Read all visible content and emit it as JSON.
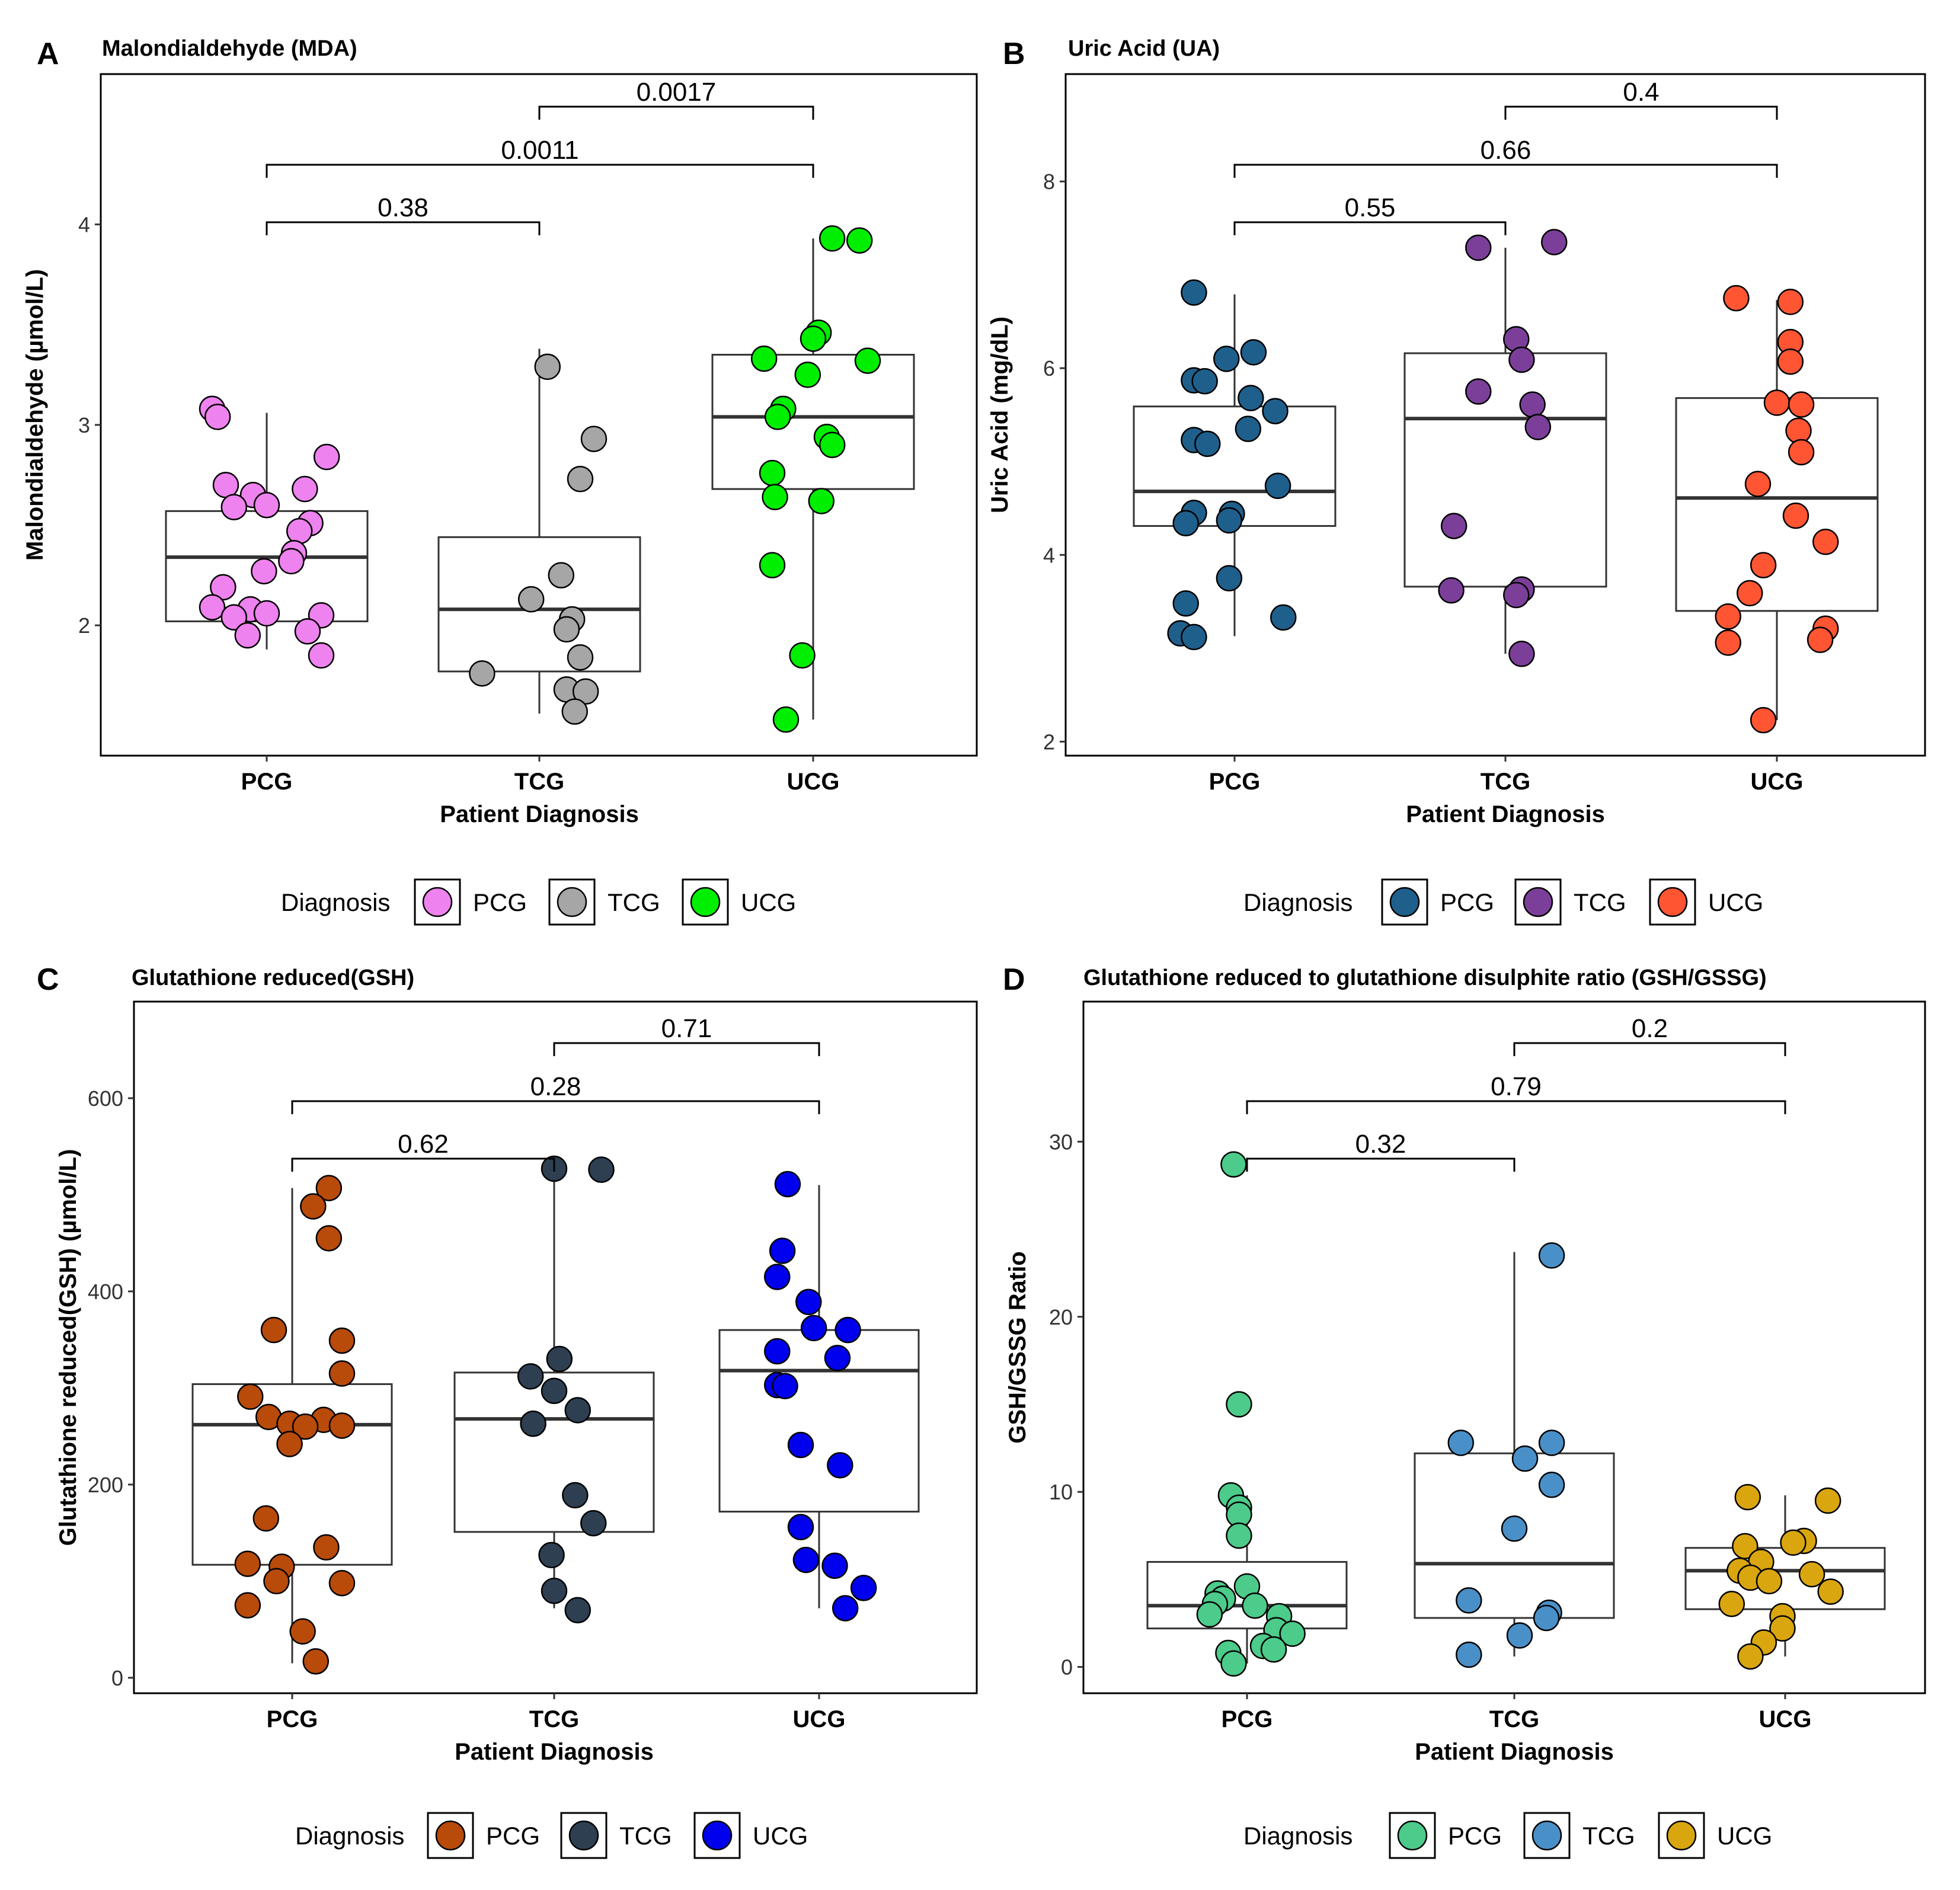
{
  "figure": {
    "panels": [
      {
        "letter": "A",
        "title": "Malondialdehyde (MDA)"
      },
      {
        "letter": "B",
        "title": "Uric Acid (UA)"
      },
      {
        "letter": "C",
        "title": "Glutathione reduced(GSH)"
      },
      {
        "letter": "D",
        "title": "Glutathione reduced to glutathione disulphite ratio (GSH/GSSG)"
      }
    ]
  },
  "chart_data": [
    {
      "type": "box",
      "panel": "A",
      "title": "Malondialdehyde (MDA)",
      "xlabel": "Patient Diagnosis",
      "ylabel": "Malondialdehyde (µmol/L)",
      "ylim": [
        1.35,
        4.75
      ],
      "yticks": [
        "2",
        "3",
        "4"
      ],
      "ytick_values": [
        2,
        3,
        4
      ],
      "categories": [
        "PCG",
        "TCG",
        "UCG"
      ],
      "colors": [
        "#EE82EE",
        "#A6A6A6",
        "#00EE00"
      ],
      "boxes": [
        {
          "group": "PCG",
          "min": 1.88,
          "q1": 2.02,
          "median": 2.34,
          "q3": 2.57,
          "max": 3.06
        },
        {
          "group": "TCG",
          "min": 1.56,
          "q1": 1.77,
          "median": 2.08,
          "q3": 2.44,
          "max": 3.38
        },
        {
          "group": "UCG",
          "min": 1.53,
          "q1": 2.68,
          "median": 3.04,
          "q3": 3.35,
          "max": 3.93
        }
      ],
      "points": [
        {
          "group": "PCG",
          "y": [
            3.08,
            3.04,
            2.84,
            2.7,
            2.68,
            2.65,
            2.6,
            2.59,
            2.51,
            2.47,
            2.36,
            2.32,
            2.27,
            2.19,
            2.09,
            2.08,
            2.06,
            2.05,
            2.04,
            1.97,
            1.95,
            1.85
          ],
          "jitter": [
            -0.2,
            -0.18,
            0.22,
            -0.15,
            0.14,
            -0.05,
            0.0,
            -0.12,
            0.16,
            0.12,
            0.1,
            0.09,
            -0.01,
            -0.16,
            -0.2,
            -0.06,
            0.0,
            0.2,
            -0.12,
            0.15,
            -0.07,
            0.2
          ]
        },
        {
          "group": "TCG",
          "y": [
            3.29,
            2.93,
            2.73,
            2.25,
            2.13,
            2.03,
            1.98,
            1.84,
            1.76,
            1.68,
            1.67,
            1.57
          ],
          "jitter": [
            0.03,
            0.2,
            0.15,
            0.08,
            -0.03,
            0.12,
            0.1,
            0.15,
            -0.21,
            0.1,
            0.17,
            0.13
          ]
        },
        {
          "group": "UCG",
          "y": [
            3.93,
            3.92,
            3.46,
            3.43,
            3.33,
            3.32,
            3.25,
            3.08,
            3.04,
            2.94,
            2.9,
            2.76,
            2.64,
            2.62,
            2.3,
            1.85,
            1.53
          ],
          "jitter": [
            0.07,
            0.17,
            0.02,
            0.0,
            -0.18,
            0.2,
            -0.02,
            -0.11,
            -0.13,
            0.05,
            0.07,
            -0.15,
            -0.14,
            0.03,
            -0.15,
            -0.04,
            -0.1
          ]
        }
      ],
      "comparisons": [
        {
          "from": "PCG",
          "to": "TCG",
          "p": "0.38"
        },
        {
          "from": "PCG",
          "to": "UCG",
          "p": "0.0011"
        },
        {
          "from": "TCG",
          "to": "UCG",
          "p": "0.0017"
        }
      ],
      "legend": {
        "title": "Diagnosis",
        "entries": [
          "PCG",
          "TCG",
          "UCG"
        ],
        "position": "bottom"
      }
    },
    {
      "type": "box",
      "panel": "B",
      "title": "Uric Acid (UA)",
      "xlabel": "Patient Diagnosis",
      "ylabel": "Uric Acid (mg/dL)",
      "ylim": [
        1.85,
        9.15
      ],
      "yticks": [
        "2",
        "4",
        "6",
        "8"
      ],
      "ytick_values": [
        2,
        4,
        6,
        8
      ],
      "categories": [
        "PCG",
        "TCG",
        "UCG"
      ],
      "colors": [
        "#1F5F8B",
        "#7B3F99",
        "#FF5533"
      ],
      "boxes": [
        {
          "group": "PCG",
          "min": 3.13,
          "q1": 4.31,
          "median": 4.68,
          "q3": 5.59,
          "max": 6.79
        },
        {
          "group": "TCG",
          "min": 2.94,
          "q1": 3.66,
          "median": 5.46,
          "q3": 6.16,
          "max": 7.29
        },
        {
          "group": "UCG",
          "min": 2.23,
          "q1": 3.4,
          "median": 4.61,
          "q3": 5.68,
          "max": 6.73
        }
      ],
      "points": [
        {
          "group": "PCG",
          "y": [
            6.81,
            6.17,
            6.1,
            5.87,
            5.86,
            5.68,
            5.54,
            5.35,
            5.23,
            5.19,
            4.74,
            4.45,
            4.44,
            4.37,
            4.34,
            3.75,
            3.48,
            3.33,
            3.16,
            3.12
          ],
          "jitter": [
            -0.15,
            0.07,
            -0.03,
            -0.15,
            -0.11,
            0.06,
            0.15,
            0.05,
            -0.15,
            -0.1,
            0.16,
            -0.15,
            -0.01,
            -0.02,
            -0.18,
            -0.02,
            -0.18,
            0.18,
            -0.2,
            -0.15
          ]
        },
        {
          "group": "TCG",
          "y": [
            7.35,
            7.29,
            6.31,
            6.09,
            5.75,
            5.61,
            5.37,
            4.31,
            3.63,
            3.62,
            3.57,
            2.94
          ],
          "jitter": [
            0.18,
            -0.1,
            0.04,
            0.06,
            -0.1,
            0.1,
            0.12,
            -0.19,
            0.06,
            -0.2,
            0.04,
            0.06
          ]
        },
        {
          "group": "UCG",
          "y": [
            6.75,
            6.71,
            6.28,
            6.07,
            5.63,
            5.61,
            5.33,
            5.1,
            4.76,
            4.42,
            4.14,
            3.89,
            3.59,
            3.34,
            3.21,
            3.09,
            3.06,
            2.23
          ],
          "jitter": [
            -0.15,
            0.05,
            0.05,
            0.05,
            0.0,
            0.09,
            0.08,
            0.09,
            -0.07,
            0.07,
            0.18,
            -0.05,
            -0.1,
            -0.18,
            0.18,
            0.16,
            -0.18,
            -0.05
          ]
        }
      ],
      "comparisons": [
        {
          "from": "PCG",
          "to": "TCG",
          "p": "0.55"
        },
        {
          "from": "PCG",
          "to": "UCG",
          "p": "0.66"
        },
        {
          "from": "TCG",
          "to": "UCG",
          "p": "0.4"
        }
      ],
      "legend": {
        "title": "Diagnosis",
        "entries": [
          "PCG",
          "TCG",
          "UCG"
        ],
        "position": "bottom"
      }
    },
    {
      "type": "box",
      "panel": "C",
      "title": "Glutathione reduced(GSH)",
      "xlabel": "Patient Diagnosis",
      "ylabel": "Glutathione reduced(GSH) (µmol/L)",
      "ylim": [
        -16,
        700
      ],
      "yticks": [
        "0",
        "200",
        "400",
        "600"
      ],
      "ytick_values": [
        0,
        200,
        400,
        600
      ],
      "categories": [
        "PCG",
        "TCG",
        "UCG"
      ],
      "colors": [
        "#B84A0A",
        "#2E3F52",
        "#0000EE"
      ],
      "boxes": [
        {
          "group": "PCG",
          "min": 15,
          "q1": 117,
          "median": 262,
          "q3": 304,
          "max": 507
        },
        {
          "group": "TCG",
          "min": 72,
          "q1": 151,
          "median": 268,
          "q3": 316,
          "max": 527
        },
        {
          "group": "UCG",
          "min": 72,
          "q1": 172,
          "median": 318,
          "q3": 360,
          "max": 510
        }
      ],
      "points": [
        {
          "group": "PCG",
          "y": [
            507,
            488,
            455,
            360,
            349,
            315,
            291,
            270,
            267,
            263,
            261,
            260,
            242,
            165,
            135,
            118,
            115,
            100,
            98,
            75,
            48,
            17
          ],
          "jitter": [
            0.14,
            0.08,
            0.14,
            -0.07,
            0.19,
            0.19,
            -0.16,
            -0.09,
            0.12,
            -0.01,
            0.19,
            0.05,
            -0.01,
            -0.1,
            0.13,
            -0.17,
            -0.04,
            -0.06,
            0.19,
            -0.17,
            0.04,
            0.09
          ]
        },
        {
          "group": "TCG",
          "y": [
            527,
            526,
            330,
            312,
            297,
            277,
            263,
            189,
            160,
            127,
            90,
            70
          ],
          "jitter": [
            0.0,
            0.18,
            0.02,
            -0.09,
            0.0,
            0.09,
            -0.08,
            0.08,
            0.15,
            -0.01,
            0.0,
            0.09
          ]
        },
        {
          "group": "UCG",
          "y": [
            511,
            442,
            415,
            389,
            362,
            360,
            338,
            331,
            303,
            302,
            241,
            220,
            156,
            122,
            116,
            93,
            72
          ],
          "jitter": [
            -0.12,
            -0.14,
            -0.16,
            -0.04,
            -0.02,
            0.11,
            -0.16,
            0.07,
            -0.16,
            -0.13,
            -0.07,
            0.08,
            -0.07,
            -0.05,
            0.06,
            0.17,
            0.1
          ]
        }
      ],
      "comparisons": [
        {
          "from": "PCG",
          "to": "TCG",
          "p": "0.62"
        },
        {
          "from": "PCG",
          "to": "UCG",
          "p": "0.28"
        },
        {
          "from": "TCG",
          "to": "UCG",
          "p": "0.71"
        }
      ],
      "legend": {
        "title": "Diagnosis",
        "entries": [
          "PCG",
          "TCG",
          "UCG"
        ],
        "position": "bottom"
      }
    },
    {
      "type": "box",
      "panel": "D",
      "title": "Glutathione reduced to glutathione disulphite ratio (GSH/GSSG)",
      "xlabel": "Patient Diagnosis",
      "ylabel": "GSH/GSSG Ratio",
      "ylim": [
        -1.5,
        38
      ],
      "yticks": [
        "0",
        "10",
        "20",
        "30"
      ],
      "ytick_values": [
        0,
        10,
        20,
        30
      ],
      "categories": [
        "PCG",
        "TCG",
        "UCG"
      ],
      "colors": [
        "#4CCB8A",
        "#4A90C8",
        "#D9A60F"
      ],
      "boxes": [
        {
          "group": "PCG",
          "min": 0.2,
          "q1": 2.2,
          "median": 3.5,
          "q3": 6.0,
          "max": 9.8
        },
        {
          "group": "TCG",
          "min": 0.6,
          "q1": 2.8,
          "median": 5.9,
          "q3": 12.2,
          "max": 23.7
        },
        {
          "group": "UCG",
          "min": 0.6,
          "q1": 3.3,
          "median": 5.5,
          "q3": 6.8,
          "max": 9.8
        }
      ],
      "points": [
        {
          "group": "PCG",
          "y": [
            28.7,
            15.0,
            9.8,
            9.1,
            8.7,
            7.5,
            4.6,
            4.2,
            3.9,
            3.6,
            3.5,
            3.0,
            2.9,
            2.1,
            1.9,
            1.2,
            1.0,
            0.8,
            0.2
          ],
          "jitter": [
            -0.05,
            -0.03,
            -0.06,
            -0.03,
            -0.03,
            -0.03,
            0.0,
            -0.11,
            -0.09,
            -0.12,
            0.03,
            -0.14,
            0.12,
            0.11,
            0.17,
            0.06,
            0.1,
            -0.07,
            -0.05
          ]
        },
        {
          "group": "TCG",
          "y": [
            23.5,
            12.8,
            12.8,
            11.9,
            10.4,
            7.9,
            3.8,
            3.1,
            2.8,
            1.8,
            0.7
          ],
          "jitter": [
            0.14,
            -0.2,
            0.14,
            0.04,
            0.14,
            0.0,
            -0.17,
            0.13,
            0.12,
            0.02,
            -0.17
          ]
        },
        {
          "group": "UCG",
          "y": [
            9.7,
            9.5,
            7.2,
            7.1,
            6.9,
            6.0,
            5.5,
            5.3,
            5.1,
            4.9,
            4.3,
            3.6,
            2.9,
            2.2,
            1.4,
            0.6
          ],
          "jitter": [
            -0.14,
            0.16,
            0.07,
            0.03,
            -0.15,
            -0.09,
            -0.17,
            0.1,
            -0.13,
            -0.06,
            0.17,
            -0.2,
            -0.01,
            -0.01,
            -0.08,
            -0.13
          ]
        }
      ],
      "comparisons": [
        {
          "from": "PCG",
          "to": "TCG",
          "p": "0.32"
        },
        {
          "from": "PCG",
          "to": "UCG",
          "p": "0.79"
        },
        {
          "from": "TCG",
          "to": "UCG",
          "p": "0.2"
        }
      ],
      "legend": {
        "title": "Diagnosis",
        "entries": [
          "PCG",
          "TCG",
          "UCG"
        ],
        "position": "bottom"
      }
    }
  ]
}
